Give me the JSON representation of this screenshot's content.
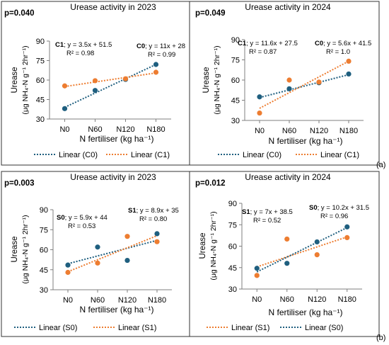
{
  "chart_data": [
    {
      "type": "scatter",
      "panel_label": "",
      "p_value": "p=0.040",
      "title": "Urease activity in 2023",
      "xlabel": "N fertiliser (kg ha⁻¹)",
      "ylabel_line1": "Urease",
      "ylabel_line2": "(μg NH₄-N g⁻¹ 2hr⁻¹)",
      "categories": [
        "N0",
        "N60",
        "N120",
        "N180"
      ],
      "ylim": [
        30,
        90
      ],
      "yticks": [
        "30",
        "45",
        "60",
        "75",
        "90"
      ],
      "grid": false,
      "legend_position": "bottom",
      "series": [
        {
          "key": "C0",
          "color": "#1f5f7f",
          "values": [
            38,
            52,
            60.5,
            72
          ],
          "trend": [
            39,
            50,
            61,
            72
          ],
          "legend": "Linear (C0)",
          "eq_name": "C0",
          "eq_text": "; y = 11x + 28",
          "r2": "R² = 0.99"
        },
        {
          "key": "C1",
          "color": "#ed7d31",
          "values": [
            55.5,
            59.5,
            61,
            66
          ],
          "trend": [
            55,
            58.5,
            62,
            65.5
          ],
          "legend": "Linear (C1)",
          "eq_name": "C1",
          "eq_text": "; y = 3.5x + 51.5",
          "r2": "R² = 0.98"
        }
      ]
    },
    {
      "type": "scatter",
      "panel_label": "(a)",
      "p_value": "p=0.049",
      "title": "Urease activity in 2024",
      "xlabel": "N fertiliser (kg ha⁻¹)",
      "ylabel_line1": "Urease",
      "ylabel_line2": "(μg NH₄-N g⁻¹ 2hr⁻¹)",
      "categories": [
        "N0",
        "N60",
        "N120",
        "N180"
      ],
      "ylim": [
        30,
        90
      ],
      "yticks": [
        "30",
        "45",
        "60",
        "75",
        "90"
      ],
      "grid": false,
      "legend_position": "bottom",
      "series": [
        {
          "key": "C0",
          "color": "#1f5f7f",
          "values": [
            47.5,
            53.5,
            58,
            64.5
          ],
          "trend": [
            47,
            52.5,
            58.5,
            64
          ],
          "legend": "Linear (C0)",
          "eq_name": "C0",
          "eq_text": "; y = 5.6x + 41.5",
          "r2": "R² = 1.0"
        },
        {
          "key": "C1",
          "color": "#ed7d31",
          "values": [
            35.5,
            60,
            58.5,
            74
          ],
          "trend": [
            39,
            51,
            62,
            74
          ],
          "legend": "Linear (C1)",
          "eq_name": "C1",
          "eq_text": "; y = 11.6x + 27.5",
          "r2": "R² = 0.87"
        }
      ]
    },
    {
      "type": "scatter",
      "panel_label": "",
      "p_value": "p=0.003",
      "title": "Urease activity in 2023",
      "xlabel": "N fertiliser (kg ha⁻¹)",
      "ylabel_line1": "Urease",
      "ylabel_line2": "(μg NH₄-N g⁻¹ 2hr⁻¹)",
      "categories": [
        "N0",
        "N60",
        "N120",
        "N180"
      ],
      "ylim": [
        30,
        90
      ],
      "yticks": [
        "30",
        "45",
        "60",
        "75",
        "90"
      ],
      "grid": false,
      "legend_position": "bottom",
      "series": [
        {
          "key": "S0",
          "color": "#1f5f7f",
          "values": [
            48.5,
            62,
            52,
            72
          ],
          "trend": [
            49.5,
            55,
            61,
            67
          ],
          "legend": "Linear (S0)",
          "eq_name": "S0",
          "eq_text": "; y = 5.9x + 44",
          "r2": "R² = 0.53"
        },
        {
          "key": "S1",
          "color": "#ed7d31",
          "values": [
            43,
            50,
            70,
            66
          ],
          "trend": [
            43.5,
            52.5,
            61.5,
            70.5
          ],
          "legend": "Linear (S1)",
          "eq_name": "S1",
          "eq_text": "; y = 8.9x + 35",
          "r2": "R² = 0.80"
        }
      ]
    },
    {
      "type": "scatter",
      "panel_label": "(b)",
      "p_value": "p=0.012",
      "title": "Urease activity in 2024",
      "xlabel": "N fertiliser (kg ha⁻¹)",
      "ylabel_line1": "Urease",
      "ylabel_line2": "(μg NH₄-N g⁻¹ 2hr⁻¹)",
      "categories": [
        "N0",
        "N60",
        "N120",
        "N180"
      ],
      "ylim": [
        30,
        90
      ],
      "yticks": [
        "30",
        "45",
        "60",
        "75",
        "90"
      ],
      "grid": false,
      "legend_position": "bottom",
      "series": [
        {
          "key": "S1",
          "color": "#ed7d31",
          "values": [
            39.5,
            65,
            54,
            66
          ],
          "trend": [
            45.5,
            52.5,
            59.5,
            66.5
          ],
          "legend": "Linear (S1)",
          "eq_name": "S1",
          "eq_text": "; y = 7x + 38.5",
          "r2": "R² = 0.52"
        },
        {
          "key": "S0",
          "color": "#1f5f7f",
          "values": [
            44.5,
            48,
            63,
            73.5
          ],
          "trend": [
            42,
            52,
            62.5,
            73
          ],
          "legend": "Linear (S0)",
          "eq_name": "S0",
          "eq_text": "; y = 10.2x + 31.5",
          "r2": "R² = 0.96"
        }
      ]
    }
  ]
}
